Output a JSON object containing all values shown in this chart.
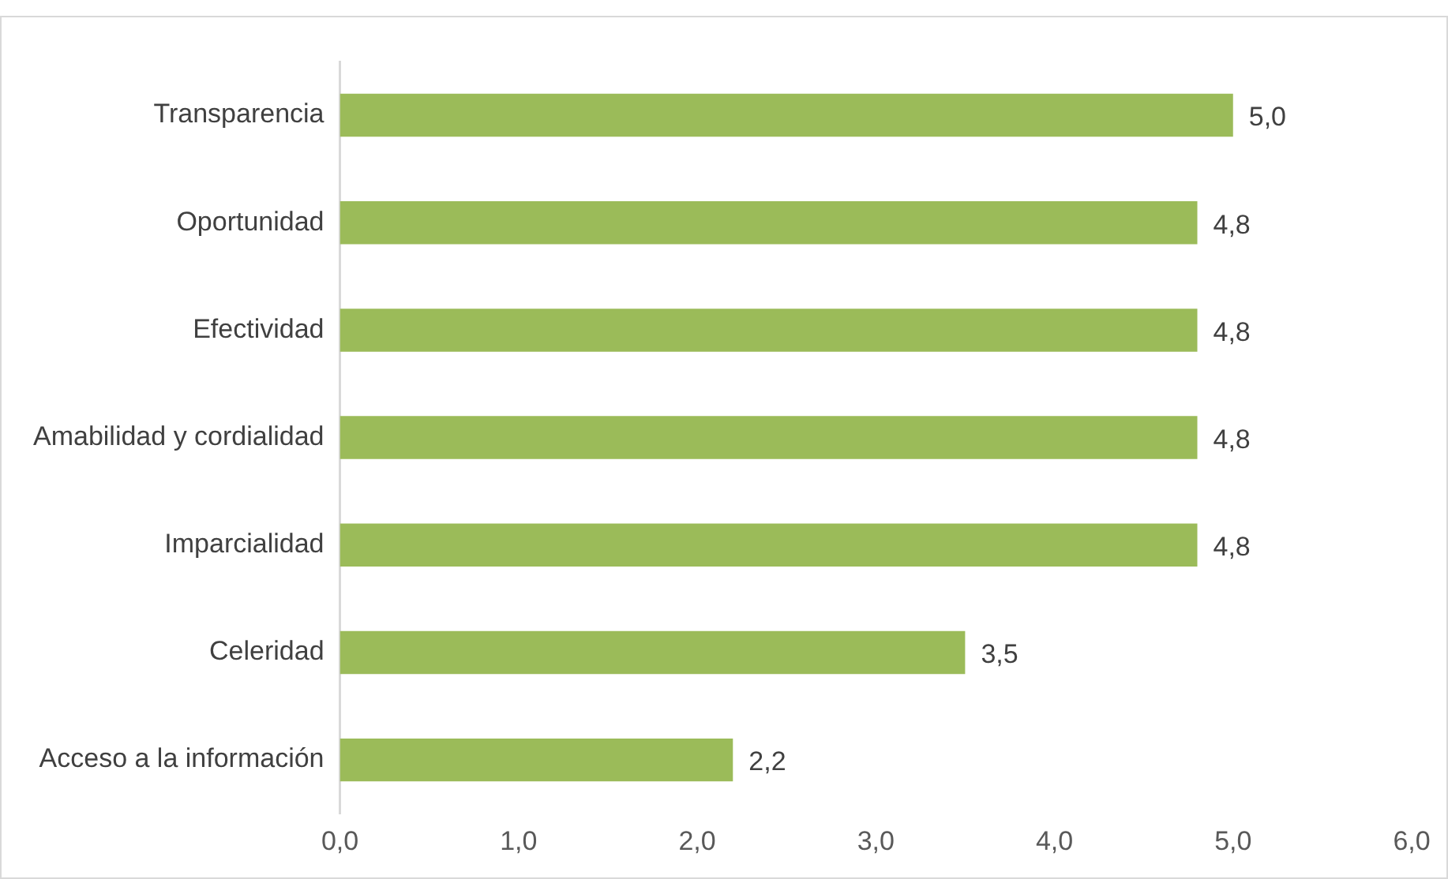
{
  "chart_data": {
    "type": "bar",
    "orientation": "horizontal",
    "categories": [
      "Transparencia",
      "Oportunidad",
      "Efectividad",
      "Amabilidad y cordialidad",
      "Imparcialidad",
      "Celeridad",
      "Acceso a la información"
    ],
    "values": [
      5.0,
      4.8,
      4.8,
      4.8,
      4.8,
      3.5,
      2.2
    ],
    "value_labels": [
      "5,0",
      "4,8",
      "4,8",
      "4,8",
      "4,8",
      "3,5",
      "2,2"
    ],
    "color": "#9bbb59",
    "xlim": [
      0,
      6
    ],
    "xticks": [
      {
        "value": 0,
        "label": "0,0"
      },
      {
        "value": 1,
        "label": "1,0"
      },
      {
        "value": 2,
        "label": "2,0"
      },
      {
        "value": 3,
        "label": "3,0"
      },
      {
        "value": 4,
        "label": "4,0"
      },
      {
        "value": 5,
        "label": "5,0"
      },
      {
        "value": 6,
        "label": "6,0"
      }
    ]
  }
}
